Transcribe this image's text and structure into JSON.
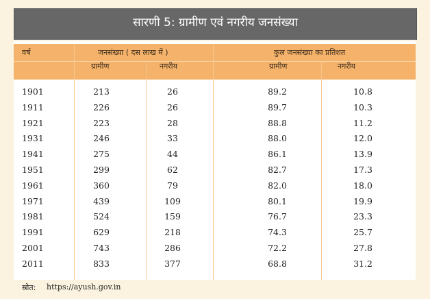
{
  "title": "सारणी 5: ग्रामीण एवं नगरीय जनसंख्या",
  "headers": {
    "year": "वर्ष",
    "population_group": "जनसंख्या ( दस लाख में )",
    "percent_group": "कुल जनसंख्या का प्रतिशत",
    "rural": "ग्रामीण",
    "urban": "नगरीय",
    "rural_pct": "ग्रामीण",
    "urban_pct": "नगरीय"
  },
  "rows": [
    {
      "year": "1901",
      "rural": "213",
      "urban": "26",
      "rural_pct": "89.2",
      "urban_pct": "10.8"
    },
    {
      "year": "1911",
      "rural": "226",
      "urban": "26",
      "rural_pct": "89.7",
      "urban_pct": "10.3"
    },
    {
      "year": "1921",
      "rural": "223",
      "urban": "28",
      "rural_pct": "88.8",
      "urban_pct": "11.2"
    },
    {
      "year": "1931",
      "rural": "246",
      "urban": "33",
      "rural_pct": "88.0",
      "urban_pct": "12.0"
    },
    {
      "year": "1941",
      "rural": "275",
      "urban": "44",
      "rural_pct": "86.1",
      "urban_pct": "13.9"
    },
    {
      "year": "1951",
      "rural": "299",
      "urban": "62",
      "rural_pct": "82.7",
      "urban_pct": "17.3"
    },
    {
      "year": "1961",
      "rural": "360",
      "urban": "79",
      "rural_pct": "82.0",
      "urban_pct": "18.0"
    },
    {
      "year": "1971",
      "rural": "439",
      "urban": "109",
      "rural_pct": "80.1",
      "urban_pct": "19.9"
    },
    {
      "year": "1981",
      "rural": "524",
      "urban": "159",
      "rural_pct": "76.7",
      "urban_pct": "23.3"
    },
    {
      "year": "1991",
      "rural": "629",
      "urban": "218",
      "rural_pct": "74.3",
      "urban_pct": "25.7"
    },
    {
      "year": "2001",
      "rural": "743",
      "urban": "286",
      "rural_pct": "72.2",
      "urban_pct": "27.8"
    },
    {
      "year": "2011",
      "rural": "833",
      "urban": "377",
      "rural_pct": "68.8",
      "urban_pct": "31.2"
    }
  ],
  "source": {
    "label": "स्रोत:",
    "url": "https://ayush.gov.in"
  },
  "colors": {
    "title_bg": "#676767",
    "header_bg": "#f4b26a",
    "page_bg": "#fbf3df"
  }
}
